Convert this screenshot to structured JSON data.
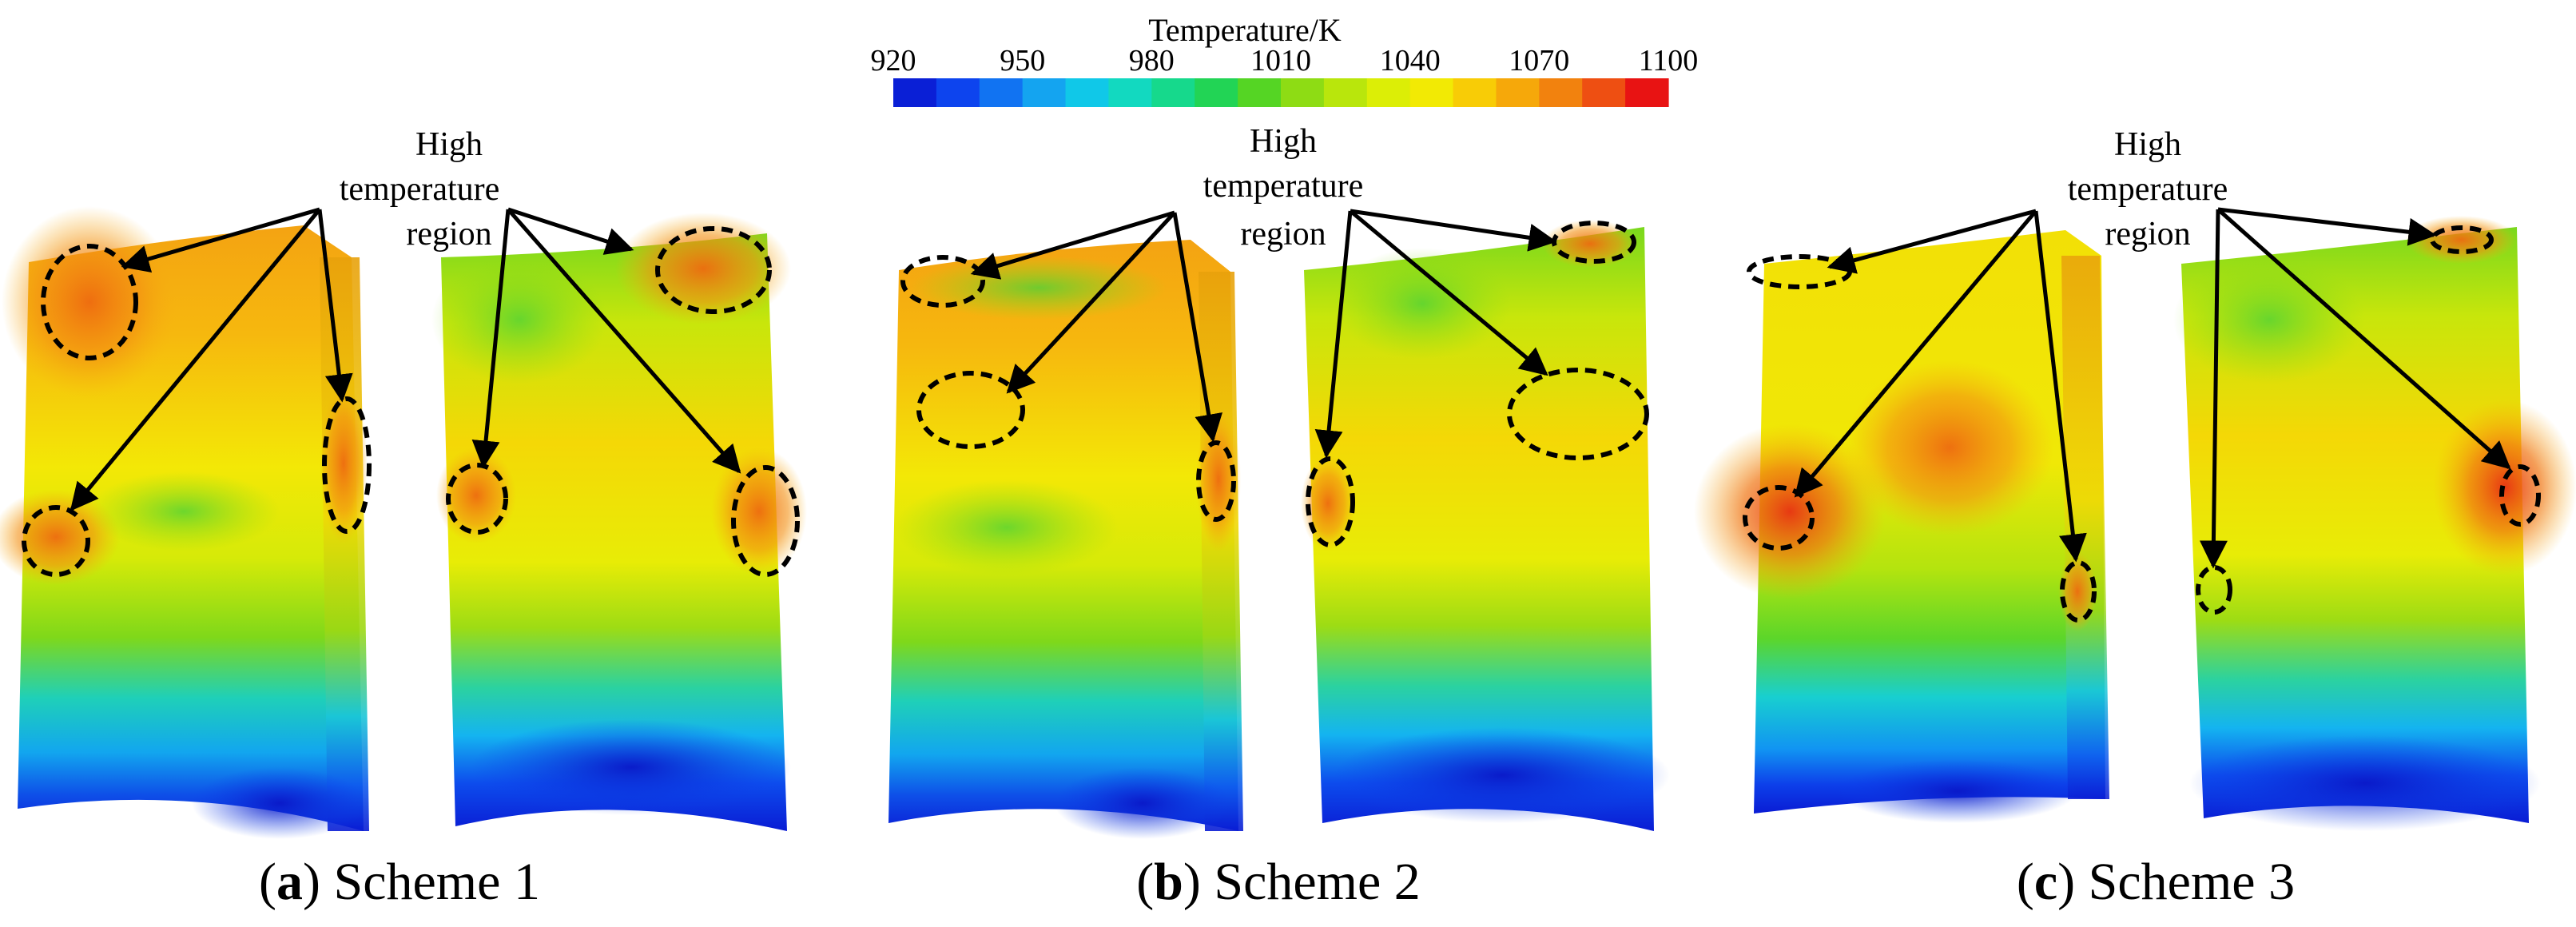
{
  "colorbar": {
    "title": "Temperature/K",
    "ticks": [
      "920",
      "950",
      "980",
      "1010",
      "1040",
      "1070",
      "1100"
    ],
    "min": 920,
    "max": 1100,
    "colors": [
      "#0a1fd6",
      "#0d44ee",
      "#1173f2",
      "#14a4f0",
      "#10c8e8",
      "#12d9c0",
      "#16d98c",
      "#22d455",
      "#55d524",
      "#8edc14",
      "#b9e60c",
      "#dcee06",
      "#f2ea04",
      "#f8cc06",
      "#f6a80a",
      "#f2820e",
      "#ee4f12",
      "#e81313"
    ]
  },
  "annotation_label": [
    "High",
    "temperature",
    "region"
  ],
  "panels": [
    {
      "letter": "a",
      "name": "Scheme 1"
    },
    {
      "letter": "b",
      "name": "Scheme 2"
    },
    {
      "letter": "c",
      "name": "Scheme 3"
    }
  ]
}
